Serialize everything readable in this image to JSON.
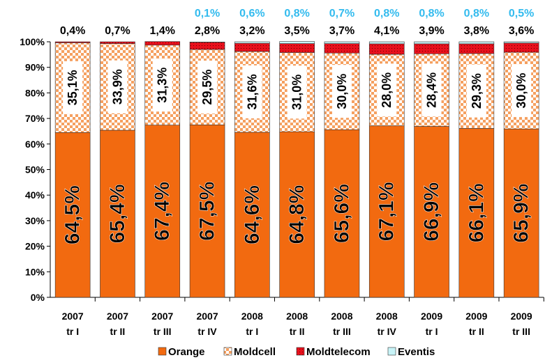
{
  "chart_data": {
    "type": "stacked_bar_percent",
    "categories": [
      "2007\ntr I",
      "2007\ntr II",
      "2007\ntr III",
      "2007\ntr IV",
      "2008\ntr I",
      "2008\ntr II",
      "2008\ntr III",
      "2008\ntr IV",
      "2009\ntr I",
      "2009\ntr II",
      "2009\ntr III"
    ],
    "series": [
      {
        "name": "Orange",
        "color": "#f26a10",
        "values": [
          64.5,
          65.4,
          67.4,
          67.5,
          64.6,
          64.8,
          65.6,
          67.1,
          66.9,
          66.1,
          65.9
        ],
        "value_labels": [
          "64,5%",
          "65,4%",
          "67,4%",
          "67,5%",
          "64,6%",
          "64,8%",
          "65,6%",
          "67,1%",
          "66,9%",
          "66,1%",
          "65,9%"
        ]
      },
      {
        "name": "Moldcell",
        "color": "#f5a060",
        "values": [
          35.1,
          33.9,
          31.3,
          29.5,
          31.6,
          31.0,
          30.0,
          28.0,
          28.4,
          29.3,
          30.0
        ],
        "value_labels": [
          "35,1%",
          "33,9%",
          "31,3%",
          "29,5%",
          "31,6%",
          "31,0%",
          "30,0%",
          "28,0%",
          "28,4%",
          "29,3%",
          "30,0%"
        ]
      },
      {
        "name": "Moldtelecom",
        "color": "#e8101c",
        "values": [
          0.4,
          0.7,
          1.4,
          2.8,
          3.2,
          3.5,
          3.7,
          4.1,
          3.9,
          3.8,
          3.6
        ],
        "value_labels": [
          "0,4%",
          "0,7%",
          "1,4%",
          "2,8%",
          "3,2%",
          "3,5%",
          "3,7%",
          "4,1%",
          "3,9%",
          "3,8%",
          "3,6%"
        ]
      },
      {
        "name": "Eventis",
        "color": "#c8f4f8",
        "values": [
          0,
          0,
          0,
          0.1,
          0.6,
          0.8,
          0.7,
          0.8,
          0.8,
          0.8,
          0.5
        ],
        "value_labels": [
          null,
          null,
          null,
          "0,1%",
          "0,6%",
          "0,8%",
          "0,7%",
          "0,8%",
          "0,8%",
          "0,8%",
          "0,5%"
        ]
      }
    ],
    "ylim": [
      0,
      100
    ],
    "yticks": [
      {
        "value": 0,
        "label": "0%"
      },
      {
        "value": 10,
        "label": "10%"
      },
      {
        "value": 20,
        "label": "20%"
      },
      {
        "value": 30,
        "label": "30%"
      },
      {
        "value": 40,
        "label": "40%"
      },
      {
        "value": 50,
        "label": "50%"
      },
      {
        "value": 60,
        "label": "60%"
      },
      {
        "value": 70,
        "label": "70%"
      },
      {
        "value": 80,
        "label": "80%"
      },
      {
        "value": 90,
        "label": "90%"
      },
      {
        "value": 100,
        "label": "100%"
      }
    ],
    "legend": "bottom"
  }
}
